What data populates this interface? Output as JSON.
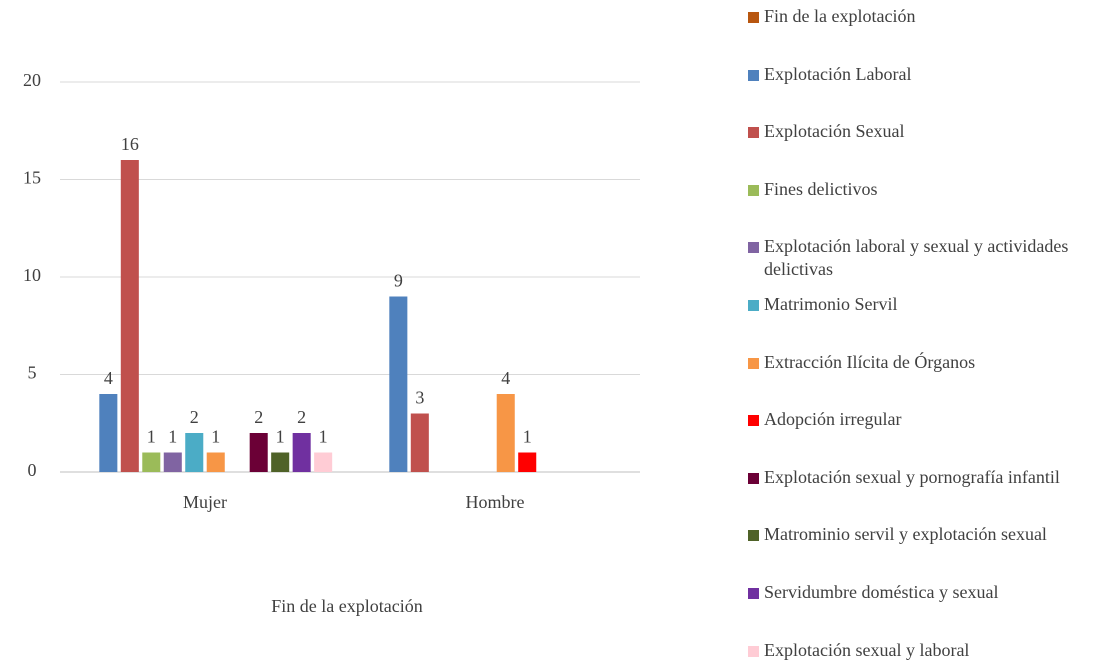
{
  "chart_data": {
    "type": "bar",
    "x_label": "Fin de la explotación",
    "categories": [
      "Mujer",
      "Hombre"
    ],
    "ylim": [
      0,
      20
    ],
    "yticks": [
      0,
      5,
      10,
      15,
      20
    ],
    "grid": true,
    "legend": "right",
    "series": [
      {
        "name": "Fin de la explotación",
        "color": "#b8560f",
        "values": [
          null,
          null
        ]
      },
      {
        "name": "Explotación Laboral",
        "color": "#4f81bd",
        "values": [
          4,
          9
        ]
      },
      {
        "name": "Explotación Sexual",
        "color": "#c0504d",
        "values": [
          16,
          3
        ]
      },
      {
        "name": "Fines delictivos",
        "color": "#9bbb59",
        "values": [
          1,
          null
        ]
      },
      {
        "name": "Explotación laboral y sexual y actividades delictivas",
        "color": "#8064a2",
        "values": [
          1,
          null
        ]
      },
      {
        "name": "Matrimonio Servil",
        "color": "#4bacc6",
        "values": [
          2,
          null
        ]
      },
      {
        "name": "Extracción Ilícita de Órganos",
        "color": "#f79646",
        "values": [
          1,
          4
        ]
      },
      {
        "name": "Adopción irregular",
        "color": "#ff0000",
        "values": [
          null,
          1
        ]
      },
      {
        "name": "Explotación sexual y pornografía infantil",
        "color": "#6b0036",
        "values": [
          2,
          null
        ]
      },
      {
        "name": "Matrominio servil y explotación sexual",
        "color": "#4f6228",
        "values": [
          1,
          null
        ]
      },
      {
        "name": "Servidumbre doméstica y sexual",
        "color": "#7030a0",
        "values": [
          2,
          null
        ]
      },
      {
        "name": "Explotación sexual y laboral",
        "color": "#ffccd5",
        "values": [
          1,
          null
        ]
      }
    ]
  }
}
